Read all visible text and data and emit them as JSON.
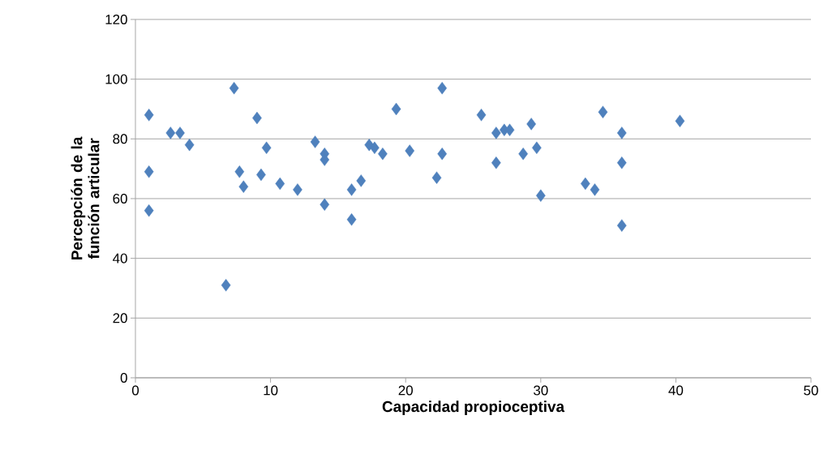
{
  "chart_data": {
    "type": "scatter",
    "xlabel": "Capacidad propioceptiva",
    "ylabel": "Percepción de la función articular",
    "x": [
      1,
      1,
      1,
      2.6,
      3.3,
      4,
      6.7,
      7.3,
      7.7,
      8,
      9,
      9.3,
      9.7,
      10.7,
      12,
      13.3,
      14,
      14,
      14,
      16,
      16,
      16.7,
      17.3,
      17.7,
      18.3,
      19.3,
      20.3,
      22.3,
      22.7,
      22.7,
      25.6,
      26.7,
      26.7,
      27.3,
      27.7,
      28.7,
      29.3,
      29.7,
      30,
      33.3,
      34,
      34.6,
      36,
      36,
      36,
      40.3
    ],
    "values": [
      88,
      69,
      56,
      82,
      82,
      78,
      31,
      97,
      69,
      64,
      87,
      68,
      77,
      65,
      63,
      79,
      75,
      73,
      58,
      63,
      53,
      66,
      78,
      77,
      75,
      90,
      76,
      67,
      97,
      75,
      88,
      82,
      72,
      83,
      83,
      75,
      85,
      77,
      61,
      65,
      63,
      89,
      82,
      72,
      51,
      86
    ],
    "color": "#4f81bd",
    "marker": "diamond",
    "xlim": [
      0,
      50
    ],
    "xticks": [
      0,
      10,
      20,
      30,
      40,
      50
    ],
    "ylim": [
      0,
      120
    ],
    "yticks": [
      0,
      20,
      40,
      60,
      80,
      100,
      120
    ],
    "grid": "y"
  }
}
